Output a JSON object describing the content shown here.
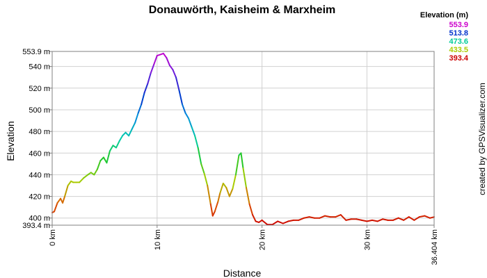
{
  "chart_data": {
    "type": "line",
    "title": "Donauwörth, Kaisheim & Marxheim",
    "xlabel": "Distance",
    "ylabel": "Elevation",
    "credit": "created by GPSVisualizer.com",
    "xlim": [
      0,
      36.404
    ],
    "ylim": [
      393.4,
      553.9
    ],
    "grid": true,
    "y_ticks": [
      {
        "value": 553.9,
        "label": "553.9 m"
      },
      {
        "value": 540,
        "label": "540 m"
      },
      {
        "value": 520,
        "label": "520 m"
      },
      {
        "value": 500,
        "label": "500 m"
      },
      {
        "value": 480,
        "label": "480 m"
      },
      {
        "value": 460,
        "label": "460 m"
      },
      {
        "value": 440,
        "label": "440 m"
      },
      {
        "value": 420,
        "label": "420 m"
      },
      {
        "value": 400,
        "label": "400 m"
      },
      {
        "value": 393.4,
        "label": "393.4 m"
      }
    ],
    "x_ticks": [
      {
        "value": 0,
        "label": "0 km"
      },
      {
        "value": 10,
        "label": "10 km"
      },
      {
        "value": 20,
        "label": "20 km"
      },
      {
        "value": 30,
        "label": "30 km"
      },
      {
        "value": 36.404,
        "label": "36.404 km"
      }
    ],
    "legend": {
      "title": "Elevation (m)",
      "placement": "top-right",
      "entries": [
        {
          "label": "553.9",
          "color": "#cc00cc"
        },
        {
          "label": "513.8",
          "color": "#0033cc"
        },
        {
          "label": "473.6",
          "color": "#00cc99"
        },
        {
          "label": "433.5",
          "color": "#aacc00"
        },
        {
          "label": "393.4",
          "color": "#cc0000"
        }
      ]
    },
    "series": [
      {
        "x": [
          0,
          0.2,
          0.5,
          0.8,
          1.0,
          1.2,
          1.5,
          1.8,
          2.0,
          2.3,
          2.6,
          3.0,
          3.4,
          3.7,
          4.0,
          4.3,
          4.6,
          4.9,
          5.2,
          5.5,
          5.8,
          6.1,
          6.4,
          6.7,
          7.0,
          7.3,
          7.6,
          7.9,
          8.2,
          8.5,
          8.8,
          9.1,
          9.4,
          9.7,
          10.0,
          10.3,
          10.6,
          10.9,
          11.2,
          11.5,
          11.8,
          12.1,
          12.4,
          12.7,
          13.0,
          13.3,
          13.6,
          13.9,
          14.2,
          14.5,
          14.8,
          15.1,
          15.3,
          15.5,
          15.8,
          16.0,
          16.3,
          16.6,
          16.9,
          17.2,
          17.5,
          17.8,
          18.0,
          18.2,
          18.5,
          18.8,
          19.1,
          19.4,
          19.7,
          20.0,
          20.5,
          21.0,
          21.5,
          22.0,
          22.5,
          23.0,
          23.5,
          24.0,
          24.5,
          25.0,
          25.5,
          26.0,
          26.5,
          27.0,
          27.5,
          28.0,
          28.5,
          29.0,
          29.5,
          30.0,
          30.5,
          31.0,
          31.5,
          32.0,
          32.5,
          33.0,
          33.5,
          34.0,
          34.5,
          35.0,
          35.5,
          36.0,
          36.404
        ],
        "y": [
          405,
          406,
          414,
          418,
          414,
          420,
          430,
          434,
          433,
          433,
          433,
          437,
          440,
          442,
          440,
          445,
          453,
          456,
          451,
          462,
          467,
          465,
          471,
          476,
          479,
          476,
          482,
          488,
          497,
          505,
          516,
          524,
          534,
          542,
          550,
          551,
          552,
          548,
          541,
          537,
          530,
          518,
          505,
          497,
          492,
          484,
          476,
          465,
          450,
          441,
          430,
          413,
          402,
          406,
          415,
          423,
          432,
          428,
          420,
          427,
          440,
          458,
          460,
          446,
          428,
          413,
          403,
          397,
          396,
          398,
          394,
          394,
          397,
          395,
          397,
          398,
          398,
          400,
          401,
          400,
          400,
          402,
          401,
          401,
          403,
          398,
          399,
          399,
          398,
          397,
          398,
          397,
          399,
          398,
          398,
          400,
          398,
          401,
          398,
          401,
          402,
          400,
          401
        ]
      }
    ]
  }
}
